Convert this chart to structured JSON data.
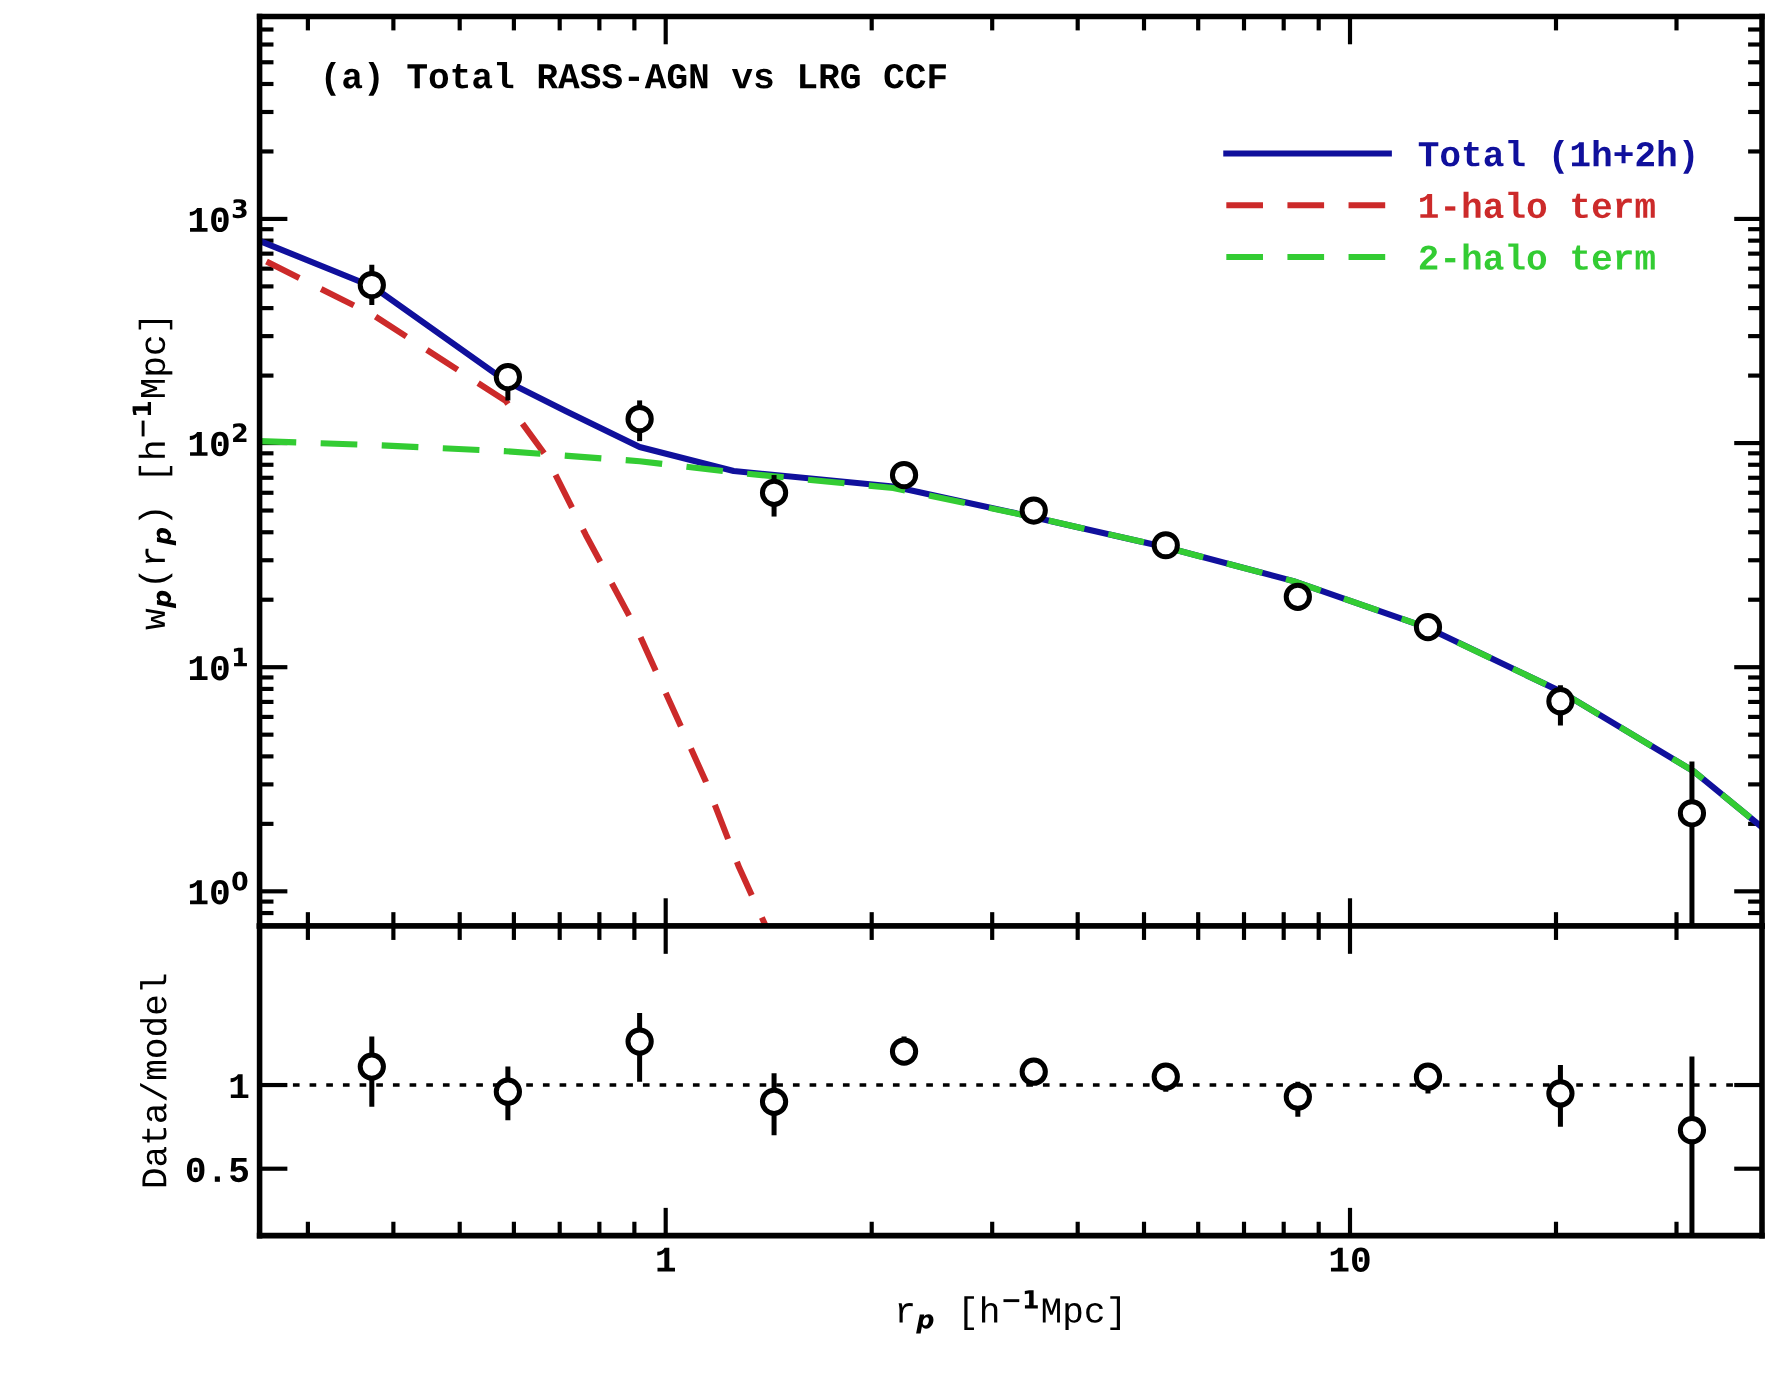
{
  "chart_data": [
    {
      "type": "scatter",
      "title": "(a) Total RASS-AGN vs LRG CCF",
      "ylabel": "w$_{p}$(r$_{p}$) [h$^{−1}$Mpc]",
      "log": "xy",
      "xlim": [
        0.255,
        40
      ],
      "ylim": [
        0.7,
        8000
      ],
      "xticks": [
        1,
        10
      ],
      "yticks": [
        {
          "value": 1,
          "label": "10$^{0}$"
        },
        {
          "value": 10,
          "label": "10$^{1}$"
        },
        {
          "value": 100,
          "label": "10$^{2}$"
        },
        {
          "value": 1000,
          "label": "10$^{3}$"
        }
      ],
      "tick_labels": "y",
      "legend": "top right",
      "grid": false,
      "series": [
        {
          "color": "#000000",
          "marker": "circle",
          "x": [
            0.372,
            0.588,
            0.916,
            1.44,
            2.23,
            3.45,
            5.38,
            8.39,
            13.0,
            20.3,
            31.6
          ],
          "values": [
            507,
            197,
            128,
            60,
            72,
            50,
            35,
            20.6,
            15.1,
            7.05,
            2.23
          ],
          "errors": [
            [
              413,
              624
            ],
            [
              155,
              222
            ],
            [
              102,
              155
            ],
            [
              47,
              72
            ],
            [
              64,
              80
            ],
            [
              45,
              55
            ],
            [
              32,
              38
            ],
            [
              18.5,
              23
            ],
            [
              13.6,
              16.8
            ],
            [
              5.5,
              8.3
            ],
            [
              0.7,
              3.8
            ]
          ]
        },
        {
          "type": "line",
          "name": "Total (1h+2h)",
          "color": "#10109c",
          "line_style": "solid",
          "x": [
            0.255,
            0.374,
            0.584,
            0.714,
            0.916,
            1.257,
            2.15,
            3.45,
            5.38,
            8.27,
            12.9,
            20.3,
            31.8,
            40
          ],
          "values": [
            798,
            497,
            189,
            139,
            96,
            75,
            64,
            46.7,
            34.3,
            24.2,
            15.1,
            7.8,
            3.43,
            1.93
          ]
        },
        {
          "type": "line",
          "name": "1-halo term",
          "color": "#cc2a2a",
          "line_style": "dashed",
          "x": [
            0.261,
            0.374,
            0.584,
            0.668,
            0.764,
            0.916,
            1.144,
            1.28,
            1.4
          ],
          "values": [
            646,
            372,
            154,
            88,
            39,
            13.9,
            3.1,
            1.28,
            0.7
          ]
        },
        {
          "type": "line",
          "name": "2-halo term",
          "color": "#33cc33",
          "line_style": "dashed",
          "x": [
            0.255,
            0.374,
            0.584,
            0.916,
            1.257,
            2.15,
            3.45,
            5.38,
            8.27,
            12.9,
            20.3,
            31.8,
            40
          ],
          "values": [
            102,
            98,
            92,
            83,
            74,
            63,
            46.7,
            34.3,
            24.2,
            15.1,
            7.8,
            3.43,
            1.93
          ]
        }
      ]
    },
    {
      "type": "scatter",
      "ylabel": "Data/model",
      "xlabel": "r$_{p}$ [h$^{−1}$Mpc]",
      "log": "x",
      "xlim": [
        0.255,
        40
      ],
      "ylim": [
        0.1,
        1.95
      ],
      "xticks": [
        1,
        10
      ],
      "yticks": [
        0.5,
        1
      ],
      "grid": false,
      "ref_lines": [
        {
          "axis": "y",
          "value": 1,
          "color": "#000000",
          "line_style": "dotted"
        }
      ],
      "series": [
        {
          "color": "#000000",
          "marker": "circle",
          "x": [
            0.372,
            0.588,
            0.916,
            1.44,
            2.23,
            3.45,
            5.38,
            8.39,
            13.0,
            20.3,
            31.6
          ],
          "values": [
            1.11,
            0.96,
            1.26,
            0.9,
            1.2,
            1.08,
            1.05,
            0.93,
            1.05,
            0.95,
            0.73
          ],
          "errors": [
            [
              0.87,
              1.29
            ],
            [
              0.79,
              1.11
            ],
            [
              1.02,
              1.43
            ],
            [
              0.7,
              1.07
            ],
            [
              1.12,
              1.29
            ],
            [
              1.01,
              1.14
            ],
            [
              0.96,
              1.11
            ],
            [
              0.81,
              1.02
            ],
            [
              0.95,
              1.13
            ],
            [
              0.75,
              1.12
            ],
            [
              0.1,
              1.17
            ]
          ]
        }
      ]
    }
  ]
}
